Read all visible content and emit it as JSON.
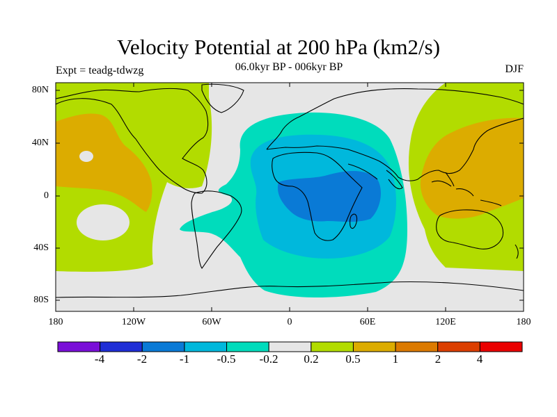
{
  "title": "Velocity Potential at 200 hPa (km2/s)",
  "subtitle": "06.0kyr BP - 006kyr BP",
  "experiment": "Expt = teadg-tdwzg",
  "season": "DJF",
  "lat_labels": [
    "80N",
    "40N",
    "0",
    "40S",
    "80S"
  ],
  "lon_labels": [
    "180",
    "120W",
    "60W",
    "0",
    "60E",
    "120E",
    "180"
  ],
  "colorbar": {
    "labels": [
      "-4",
      "-2",
      "-1",
      "-0.5",
      "-0.2",
      "0.2",
      "0.5",
      "1",
      "2",
      "4"
    ],
    "colors": [
      "#7a0fd8",
      "#1f2ed6",
      "#0a7ad6",
      "#00b8dc",
      "#00dcbc",
      "#e6e6e6",
      "#b2dc00",
      "#dcac00",
      "#dc7a00",
      "#dc3f00",
      "#ea0000"
    ]
  },
  "map_colors": {
    "neutral": "#e6e6e6",
    "pos_weak": "#b2dc00",
    "pos_mid": "#dcac00",
    "neg_weak": "#00dcbc",
    "neg_mid": "#00b8dc",
    "neg_strong": "#0a7ad6"
  }
}
